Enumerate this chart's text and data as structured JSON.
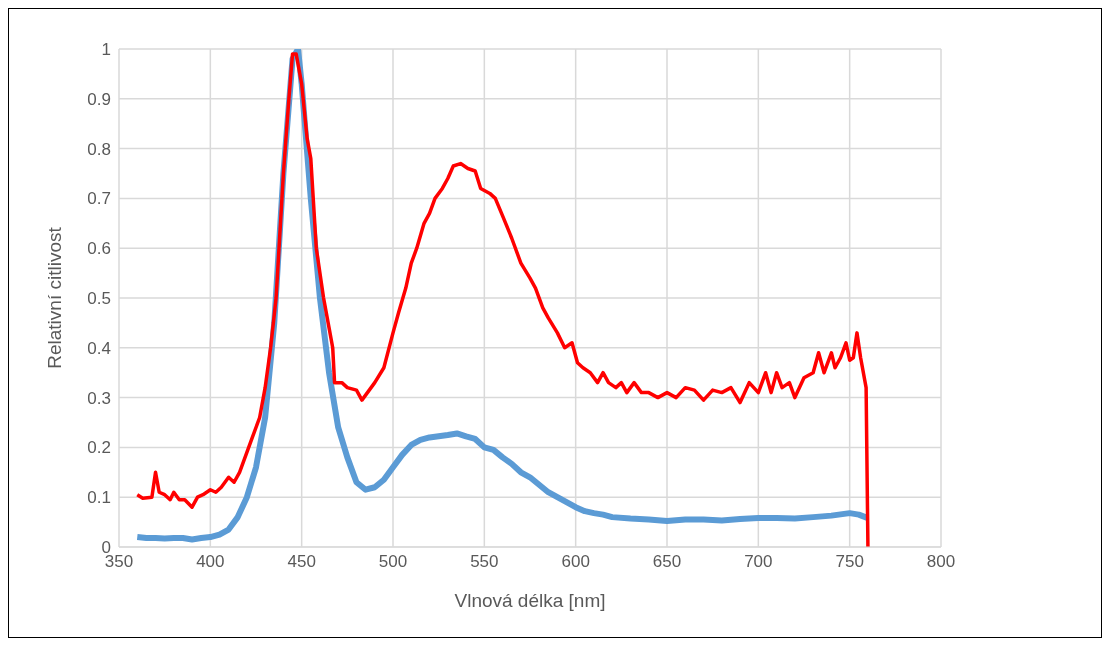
{
  "chart_data": {
    "type": "line",
    "xlabel": "Vlnová délka [nm]",
    "ylabel": "Relativní citlivost",
    "xlim": [
      350,
      800
    ],
    "xticks": [
      350,
      400,
      450,
      500,
      550,
      600,
      650,
      700,
      750,
      800
    ],
    "ylim": [
      0,
      1
    ],
    "yticks": [
      0,
      0.1,
      0.2,
      0.3,
      0.4,
      0.5,
      0.6,
      0.7,
      0.8,
      0.9,
      1
    ],
    "grid": true,
    "legend": false,
    "marker": "none",
    "line_style": "solid",
    "series": [
      {
        "color": "#5b9bd5",
        "x": [
          360,
          365,
          370,
          375,
          380,
          385,
          390,
          395,
          400,
          405,
          410,
          415,
          420,
          425,
          430,
          435,
          440,
          445,
          448,
          450,
          455,
          460,
          465,
          470,
          475,
          480,
          485,
          490,
          495,
          500,
          505,
          510,
          515,
          520,
          530,
          535,
          540,
          545,
          550,
          555,
          560,
          565,
          570,
          575,
          580,
          585,
          590,
          595,
          600,
          605,
          610,
          615,
          620,
          630,
          640,
          650,
          660,
          670,
          680,
          690,
          700,
          710,
          720,
          730,
          740,
          750,
          755,
          760
        ],
        "values": [
          0.02,
          0.018,
          0.018,
          0.017,
          0.018,
          0.018,
          0.015,
          0.018,
          0.02,
          0.025,
          0.035,
          0.06,
          0.1,
          0.16,
          0.26,
          0.45,
          0.75,
          0.98,
          1.0,
          0.93,
          0.7,
          0.5,
          0.35,
          0.24,
          0.18,
          0.13,
          0.115,
          0.12,
          0.135,
          0.16,
          0.185,
          0.205,
          0.215,
          0.22,
          0.225,
          0.228,
          0.222,
          0.217,
          0.2,
          0.195,
          0.18,
          0.167,
          0.15,
          0.14,
          0.125,
          0.11,
          0.1,
          0.09,
          0.08,
          0.072,
          0.068,
          0.065,
          0.06,
          0.057,
          0.055,
          0.052,
          0.055,
          0.055,
          0.053,
          0.056,
          0.058,
          0.058,
          0.057,
          0.06,
          0.063,
          0.068,
          0.065,
          0.058
        ]
      },
      {
        "color": "#ff0000",
        "x": [
          360,
          363,
          368,
          370,
          372,
          375,
          378,
          380,
          383,
          386,
          390,
          393,
          396,
          400,
          403,
          406,
          410,
          413,
          416,
          420,
          423,
          427,
          430,
          433,
          436,
          440,
          443,
          445,
          447,
          450,
          453,
          455,
          458,
          462,
          465,
          467,
          468,
          472,
          475,
          480,
          483,
          486,
          490,
          495,
          500,
          503,
          507,
          510,
          513,
          517,
          520,
          523,
          527,
          530,
          533,
          537,
          541,
          545,
          548,
          553,
          556,
          560,
          565,
          570,
          575,
          578,
          582,
          585,
          590,
          594,
          598,
          601,
          604,
          608,
          612,
          615,
          618,
          622,
          625,
          628,
          632,
          636,
          640,
          645,
          650,
          655,
          660,
          665,
          670,
          675,
          680,
          685,
          690,
          695,
          700,
          704,
          707,
          710,
          713,
          717,
          720,
          725,
          730,
          733,
          736,
          740,
          742,
          745,
          748,
          750,
          752,
          754,
          756,
          759,
          760
        ],
        "values": [
          0.105,
          0.098,
          0.1,
          0.15,
          0.11,
          0.105,
          0.095,
          0.11,
          0.095,
          0.095,
          0.08,
          0.1,
          0.105,
          0.115,
          0.11,
          0.12,
          0.14,
          0.13,
          0.15,
          0.19,
          0.22,
          0.26,
          0.32,
          0.4,
          0.5,
          0.75,
          0.9,
          0.99,
          0.99,
          0.93,
          0.82,
          0.78,
          0.6,
          0.5,
          0.44,
          0.4,
          0.33,
          0.33,
          0.32,
          0.315,
          0.295,
          0.31,
          0.33,
          0.36,
          0.43,
          0.47,
          0.52,
          0.57,
          0.6,
          0.65,
          0.67,
          0.7,
          0.72,
          0.74,
          0.765,
          0.77,
          0.76,
          0.755,
          0.72,
          0.71,
          0.7,
          0.665,
          0.62,
          0.57,
          0.54,
          0.52,
          0.48,
          0.46,
          0.43,
          0.4,
          0.41,
          0.37,
          0.36,
          0.35,
          0.33,
          0.35,
          0.33,
          0.32,
          0.33,
          0.31,
          0.33,
          0.31,
          0.31,
          0.3,
          0.31,
          0.3,
          0.32,
          0.315,
          0.295,
          0.315,
          0.31,
          0.32,
          0.29,
          0.33,
          0.31,
          0.35,
          0.31,
          0.35,
          0.32,
          0.33,
          0.3,
          0.34,
          0.35,
          0.39,
          0.35,
          0.39,
          0.36,
          0.38,
          0.41,
          0.375,
          0.38,
          0.43,
          0.38,
          0.32,
          0.0
        ]
      }
    ]
  }
}
